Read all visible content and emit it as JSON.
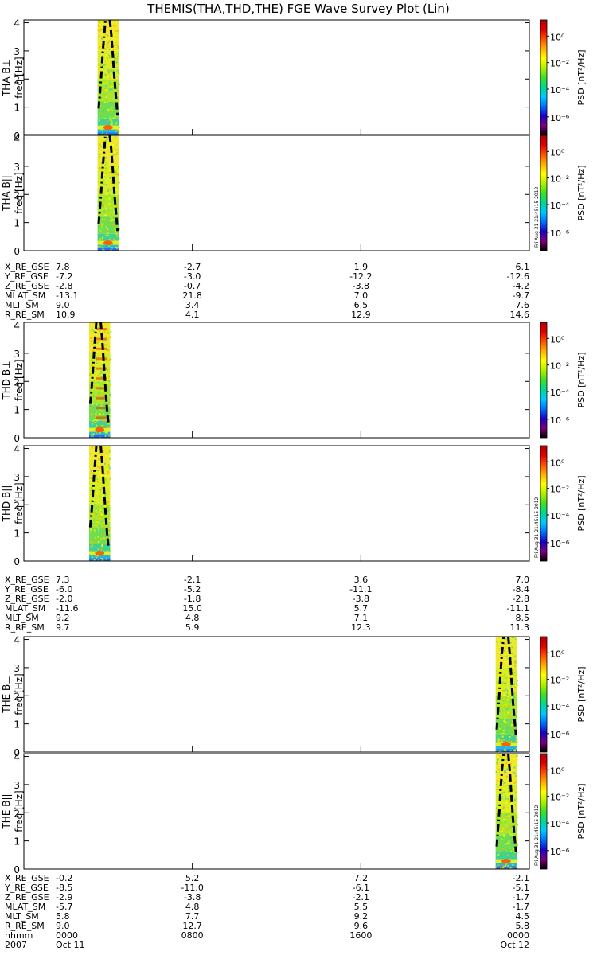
{
  "chart_data": {
    "type": "heatmap",
    "title": "THEMIS(THA,THD,THE) FGE Wave Survey Plot (Lin)",
    "x_axis": {
      "unit": "hhmm",
      "range": [
        "2007-10-11 00:00",
        "2007-10-12 00:00"
      ],
      "ticks": [
        "0000",
        "0800",
        "1600",
        "0000"
      ],
      "year_label": "2007",
      "date_labels": [
        "Oct 11",
        "",
        "",
        "Oct 12"
      ]
    },
    "y_axis": {
      "ylim": [
        0,
        4.1
      ],
      "ticks": [
        "0",
        "1",
        "2",
        "3",
        "4"
      ]
    },
    "colorbar": {
      "label": "PSD [nT²/Hz]",
      "scale": "log",
      "ticks": [
        "10⁰",
        "10⁻²",
        "10⁻⁴",
        "10⁻⁶"
      ],
      "colors": [
        "#000000",
        "#7a007a",
        "#1a00c8",
        "#0070ff",
        "#00c8ff",
        "#00d890",
        "#40e020",
        "#b0f000",
        "#ffff00",
        "#ffb000",
        "#ff5000",
        "#e00000",
        "#b00000"
      ]
    },
    "stamp": "Fri Aug 31 21:45:15 2012",
    "panels": [
      {
        "ylabel": "THA B⊥\nfreq [Hz]",
        "probe": "tha",
        "component": "perp",
        "data_window_hours": [
          3.5,
          4.5
        ],
        "curve_left": [
          [
            3.55,
            0.95
          ],
          [
            3.6,
            1.4
          ],
          [
            3.68,
            2.2
          ],
          [
            3.75,
            3.0
          ],
          [
            3.82,
            3.6
          ],
          [
            3.87,
            4.1
          ]
        ],
        "curve_right": [
          [
            4.08,
            4.1
          ],
          [
            4.15,
            3.6
          ],
          [
            4.23,
            2.8
          ],
          [
            4.3,
            2.0
          ],
          [
            4.38,
            1.3
          ],
          [
            4.45,
            0.7
          ]
        ]
      },
      {
        "ylabel": "THA B||\nfreq [Hz]",
        "probe": "tha",
        "component": "par",
        "data_window_hours": [
          3.5,
          4.5
        ],
        "curve_left": [
          [
            3.55,
            0.95
          ],
          [
            3.6,
            1.4
          ],
          [
            3.68,
            2.2
          ],
          [
            3.75,
            3.0
          ],
          [
            3.82,
            3.6
          ],
          [
            3.87,
            4.1
          ]
        ],
        "curve_right": [
          [
            4.08,
            4.1
          ],
          [
            4.15,
            3.6
          ],
          [
            4.23,
            2.8
          ],
          [
            4.3,
            2.0
          ],
          [
            4.38,
            1.3
          ],
          [
            4.45,
            0.7
          ]
        ]
      },
      {
        "ylabel": "THD B⊥\nfreq [Hz]",
        "probe": "thd",
        "component": "perp",
        "data_window_hours": [
          3.1,
          4.1
        ],
        "curve_left": [
          [
            3.15,
            1.2
          ],
          [
            3.2,
            1.6
          ],
          [
            3.27,
            2.3
          ],
          [
            3.33,
            3.0
          ],
          [
            3.4,
            3.7
          ],
          [
            3.44,
            4.1
          ]
        ],
        "curve_right": [
          [
            3.65,
            4.1
          ],
          [
            3.72,
            3.5
          ],
          [
            3.8,
            2.6
          ],
          [
            3.88,
            1.7
          ],
          [
            3.95,
            1.0
          ],
          [
            4.02,
            0.45
          ]
        ]
      },
      {
        "ylabel": "THD B||\nfreq [Hz]",
        "probe": "thd",
        "component": "par",
        "data_window_hours": [
          3.1,
          4.1
        ],
        "curve_left": [
          [
            3.15,
            1.2
          ],
          [
            3.2,
            1.6
          ],
          [
            3.27,
            2.3
          ],
          [
            3.33,
            3.0
          ],
          [
            3.4,
            3.7
          ],
          [
            3.44,
            4.1
          ]
        ],
        "curve_right": [
          [
            3.65,
            4.1
          ],
          [
            3.72,
            3.5
          ],
          [
            3.8,
            2.6
          ],
          [
            3.88,
            1.7
          ],
          [
            3.95,
            1.0
          ],
          [
            4.02,
            0.45
          ]
        ]
      },
      {
        "ylabel": "THE B⊥\nfreq [Hz]",
        "probe": "the",
        "component": "perp",
        "data_window_hours": [
          22.4,
          23.4
        ],
        "curve_left": [
          [
            22.45,
            0.8
          ],
          [
            22.5,
            1.3
          ],
          [
            22.57,
            2.0
          ],
          [
            22.63,
            2.8
          ],
          [
            22.7,
            3.5
          ],
          [
            22.78,
            4.1
          ]
        ],
        "curve_right": [
          [
            23.0,
            4.1
          ],
          [
            23.07,
            3.5
          ],
          [
            23.15,
            2.6
          ],
          [
            23.22,
            1.8
          ],
          [
            23.3,
            1.1
          ],
          [
            23.37,
            0.6
          ]
        ]
      },
      {
        "ylabel": "THE B||\nfreq [Hz]",
        "probe": "the",
        "component": "par",
        "data_window_hours": [
          22.4,
          23.4
        ],
        "curve_left": [
          [
            22.45,
            0.8
          ],
          [
            22.5,
            1.3
          ],
          [
            22.57,
            2.0
          ],
          [
            22.63,
            2.8
          ],
          [
            22.7,
            3.5
          ],
          [
            22.78,
            4.1
          ]
        ],
        "curve_right": [
          [
            23.0,
            4.1
          ],
          [
            23.07,
            3.5
          ],
          [
            23.15,
            2.6
          ],
          [
            23.22,
            1.8
          ],
          [
            23.3,
            1.1
          ],
          [
            23.37,
            0.6
          ]
        ]
      }
    ],
    "ephemeris_blocks": [
      {
        "rows": [
          {
            "label": "X_RE_GSE",
            "values": [
              "7.8",
              "-2.7",
              "1.9",
              "6.1"
            ]
          },
          {
            "label": "Y_RE_GSE",
            "values": [
              "-7.2",
              "-3.0",
              "-12.2",
              "-12.6"
            ]
          },
          {
            "label": "Z_RE_GSE",
            "values": [
              "-2.8",
              "-0.7",
              "-3.8",
              "-4.2"
            ]
          },
          {
            "label": "MLAT_SM",
            "values": [
              "-13.1",
              "21.8",
              "7.0",
              "-9.7"
            ]
          },
          {
            "label": "MLT_SM",
            "values": [
              "9.0",
              "3.4",
              "6.5",
              "7.6"
            ]
          },
          {
            "label": "R_RE_SM",
            "values": [
              "10.9",
              "4.1",
              "12.9",
              "14.6"
            ]
          }
        ]
      },
      {
        "rows": [
          {
            "label": "X_RE_GSE",
            "values": [
              "7.3",
              "-2.1",
              "3.6",
              "7.0"
            ]
          },
          {
            "label": "Y_RE_GSE",
            "values": [
              "-6.0",
              "-5.2",
              "-11.1",
              "-8.4"
            ]
          },
          {
            "label": "Z_RE_GSE",
            "values": [
              "-2.0",
              "-1.8",
              "-3.8",
              "-2.8"
            ]
          },
          {
            "label": "MLAT_SM",
            "values": [
              "-11.6",
              "15.0",
              "5.7",
              "-11.1"
            ]
          },
          {
            "label": "MLT_SM",
            "values": [
              "9.2",
              "4.8",
              "7.1",
              "8.5"
            ]
          },
          {
            "label": "R_RE_SM",
            "values": [
              "9.7",
              "5.9",
              "12.3",
              "11.3"
            ]
          }
        ]
      },
      {
        "rows": [
          {
            "label": "X_RE_GSE",
            "values": [
              "-0.2",
              "5.2",
              "7.2",
              "-2.1"
            ]
          },
          {
            "label": "Y_RE_GSE",
            "values": [
              "-8.5",
              "-11.0",
              "-6.1",
              "-5.1"
            ]
          },
          {
            "label": "Z_RE_GSE",
            "values": [
              "-2.9",
              "-3.8",
              "-2.1",
              "-1.7"
            ]
          },
          {
            "label": "MLAT_SM",
            "values": [
              "-5.7",
              "4.8",
              "5.5",
              "-1.7"
            ]
          },
          {
            "label": "MLT_SM",
            "values": [
              "5.8",
              "7.7",
              "9.2",
              "4.5"
            ]
          },
          {
            "label": "R_RE_SM",
            "values": [
              "9.0",
              "12.7",
              "9.6",
              "5.8"
            ]
          }
        ]
      }
    ]
  }
}
